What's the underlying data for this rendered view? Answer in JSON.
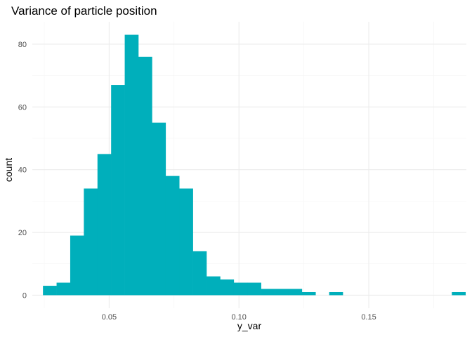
{
  "chart_data": {
    "type": "bar",
    "title": "Variance of particle position",
    "xlabel": "y_var",
    "ylabel": "count",
    "xlim": [
      0.0204,
      0.1876
    ],
    "ylim": [
      -4.15,
      87.15
    ],
    "bin_width": 0.00525,
    "bin_start": 0.0245,
    "counts": [
      3,
      4,
      19,
      34,
      45,
      67,
      83,
      76,
      55,
      38,
      34,
      14,
      6,
      5,
      4,
      4,
      2,
      2,
      2,
      1,
      0,
      1,
      0,
      0,
      0,
      0,
      0,
      0,
      0,
      0,
      1
    ],
    "x_ticks": [
      0.05,
      0.1,
      0.15
    ],
    "x_tick_labels": [
      "0.05",
      "0.10",
      "0.15"
    ],
    "x_minor_ticks": [
      0.025,
      0.075,
      0.125,
      0.175
    ],
    "y_ticks": [
      0,
      20,
      40,
      60,
      80
    ],
    "y_tick_labels": [
      "0",
      "20",
      "40",
      "60",
      "80"
    ],
    "y_minor_ticks": [
      10,
      30,
      50,
      70
    ],
    "grid": true,
    "legend": "none",
    "bar_color": "#00AFBB"
  }
}
